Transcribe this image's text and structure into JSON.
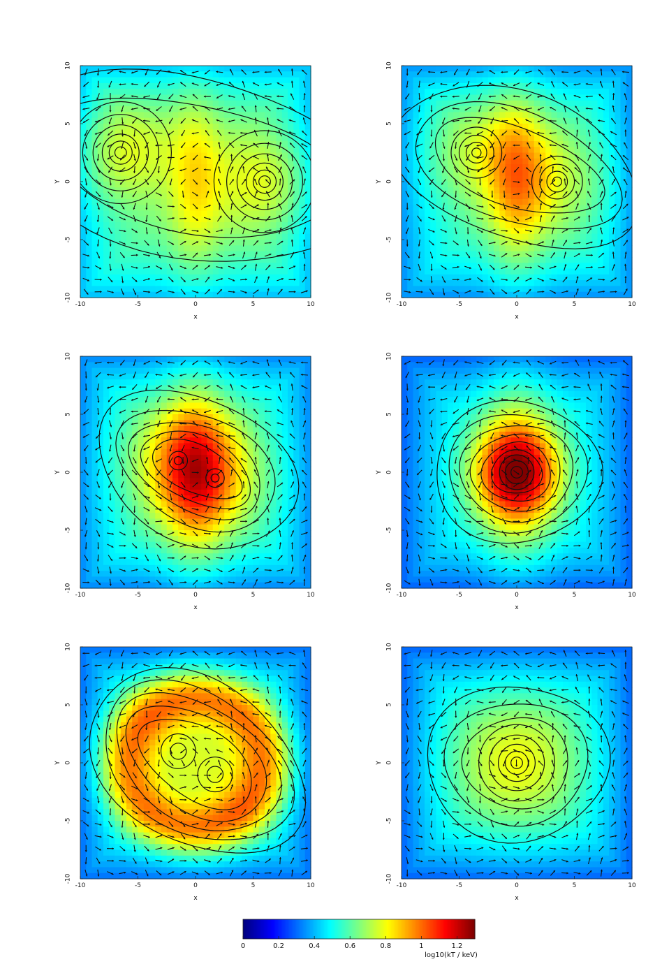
{
  "chart_data": [
    {
      "type": "heatmap",
      "panel": "top-left",
      "xlabel": "x",
      "ylabel": "Y",
      "xlim": [
        -10,
        10
      ],
      "ylim": [
        -10,
        10
      ],
      "xticks": [
        "-10",
        "-5",
        "0",
        "5",
        "10"
      ],
      "yticks": [
        "-10",
        "-5",
        "0",
        "5",
        "10"
      ],
      "background_level": 0.62,
      "hot_bridge": {
        "x": 0,
        "width": 1.6,
        "amp": 0.2
      },
      "cores": [
        {
          "x": -6.5,
          "y": 2.5,
          "amp": 0.2,
          "sigma": 3.2
        },
        {
          "x": 6.0,
          "y": 0.0,
          "amp": 0.2,
          "sigma": 3.2
        }
      ],
      "contour_centers": [
        {
          "x": -6.5,
          "y": 2.5,
          "radii": [
            0.5,
            1.0,
            1.6,
            2.4,
            3.3,
            4.4
          ]
        },
        {
          "x": 6.0,
          "y": 0.0,
          "radii": [
            0.5,
            1.0,
            1.6,
            2.4,
            3.3,
            4.4
          ]
        }
      ],
      "envelope_contours": [
        6.5,
        9.2
      ]
    },
    {
      "type": "heatmap",
      "panel": "top-right",
      "xlabel": "x",
      "ylabel": "Y",
      "xlim": [
        -10,
        10
      ],
      "ylim": [
        -10,
        10
      ],
      "xticks": [
        "-10",
        "-5",
        "0",
        "5",
        "10"
      ],
      "yticks": [
        "-10",
        "-5",
        "0",
        "5",
        "10"
      ],
      "background_level": 0.56,
      "hot_bridge": {
        "x": 0,
        "width": 1.8,
        "amp": 0.28
      },
      "cores": [
        {
          "x": -3.5,
          "y": 2.5,
          "amp": 0.18,
          "sigma": 3.5
        },
        {
          "x": 3.5,
          "y": 0.0,
          "amp": 0.18,
          "sigma": 3.5
        }
      ],
      "contour_centers": [
        {
          "x": -3.5,
          "y": 2.5,
          "radii": [
            0.4,
            0.9,
            1.5,
            2.2
          ]
        },
        {
          "x": 3.5,
          "y": 0.0,
          "radii": [
            0.4,
            0.9,
            1.5,
            2.2
          ]
        }
      ],
      "envelope_contours": [
        4.0,
        5.6,
        7.4
      ]
    },
    {
      "type": "heatmap",
      "panel": "middle-left",
      "xlabel": "x",
      "ylabel": "Y",
      "xlim": [
        -10,
        10
      ],
      "ylim": [
        -10,
        10
      ],
      "xticks": [
        "-10",
        "-5",
        "0",
        "5",
        "10"
      ],
      "yticks": [
        "-10",
        "-5",
        "0",
        "5",
        "10"
      ],
      "background_level": 0.55,
      "hot_bridge": {
        "x": 0,
        "width": 2.0,
        "amp": 0.32
      },
      "cores": [
        {
          "x": -1.5,
          "y": 1.0,
          "amp": 0.22,
          "sigma": 3.6
        },
        {
          "x": 1.7,
          "y": -0.5,
          "amp": 0.22,
          "sigma": 3.6
        }
      ],
      "contour_centers": [
        {
          "x": -1.5,
          "y": 1.0,
          "radii": [
            0.35,
            0.8
          ]
        },
        {
          "x": 1.7,
          "y": -0.5,
          "radii": [
            0.35,
            0.8
          ]
        }
      ],
      "envelope_contours": [
        2.4,
        3.3,
        4.3,
        5.5,
        7.3
      ]
    },
    {
      "type": "heatmap",
      "panel": "middle-right",
      "xlabel": "x",
      "ylabel": "Y",
      "xlim": [
        -10,
        10
      ],
      "ylim": [
        -10,
        10
      ],
      "xticks": [
        "-10",
        "-5",
        "0",
        "5",
        "10"
      ],
      "yticks": [
        "-10",
        "-5",
        "0",
        "5",
        "10"
      ],
      "background_level": 0.5,
      "hot_bridge": {
        "x": 0,
        "width": 2.2,
        "amp": 0.3
      },
      "cores": [
        {
          "x": 0.0,
          "y": 0.0,
          "amp": 0.55,
          "sigma": 2.8
        }
      ],
      "contour_centers": [
        {
          "x": 0.0,
          "y": 0.0,
          "radii": [
            0.5,
            1.0,
            1.5
          ]
        }
      ],
      "envelope_contours": [
        2.2,
        3.0,
        3.9,
        4.9,
        6.0,
        7.2
      ]
    },
    {
      "type": "heatmap",
      "panel": "bottom-left",
      "xlabel": "x",
      "ylabel": "Y",
      "xlim": [
        -10,
        10
      ],
      "ylim": [
        -10,
        10
      ],
      "xticks": [
        "-10",
        "-5",
        "0",
        "5",
        "10"
      ],
      "yticks": [
        "-10",
        "-5",
        "0",
        "5",
        "10"
      ],
      "background_level": 0.52,
      "ring": {
        "x": 0,
        "y": 0,
        "radius": 6.0,
        "width": 1.8,
        "amp": 0.45
      },
      "cores": [
        {
          "x": -1.5,
          "y": 1.0,
          "amp": 0.15,
          "sigma": 3.0
        },
        {
          "x": 1.7,
          "y": -1.0,
          "amp": 0.15,
          "sigma": 3.0
        }
      ],
      "contour_centers": [
        {
          "x": -1.5,
          "y": 1.0,
          "radii": [
            0.7,
            1.5
          ]
        },
        {
          "x": 1.7,
          "y": -1.0,
          "radii": [
            0.7,
            1.5
          ]
        }
      ],
      "envelope_contours": [
        3.6,
        4.8,
        5.9,
        7.0,
        8.2
      ]
    },
    {
      "type": "heatmap",
      "panel": "bottom-right",
      "xlabel": "x",
      "ylabel": "Y",
      "xlim": [
        -10,
        10
      ],
      "ylim": [
        -10,
        10
      ],
      "xticks": [
        "-10",
        "-5",
        "0",
        "5",
        "10"
      ],
      "yticks": [
        "-10",
        "-5",
        "0",
        "5",
        "10"
      ],
      "background_level": 0.5,
      "cores": [
        {
          "x": 0.0,
          "y": 0.0,
          "amp": 0.3,
          "sigma": 4.2
        }
      ],
      "contour_centers": [
        {
          "x": 0.0,
          "y": 0.0,
          "radii": [
            0.5,
            1.0,
            1.6,
            2.4,
            3.3
          ]
        }
      ],
      "envelope_contours": [
        4.6,
        6.2,
        7.9
      ]
    }
  ],
  "colorbar": {
    "min": 0,
    "max": 1.3,
    "ticks": [
      "0",
      "0.2",
      "0.4",
      "0.6",
      "0.8",
      "1",
      "1.2"
    ],
    "tick_values": [
      0,
      0.2,
      0.4,
      0.6,
      0.8,
      1.0,
      1.2
    ],
    "label": "log10(kT / keV)",
    "colormap": "jet"
  }
}
